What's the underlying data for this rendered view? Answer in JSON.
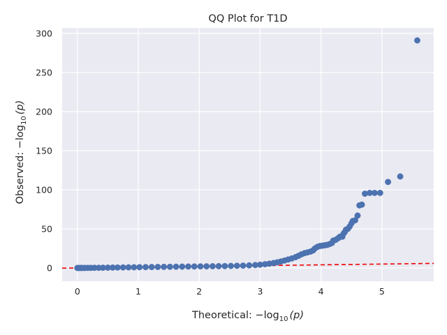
{
  "chart_data": {
    "type": "scatter",
    "title": "QQ Plot for T1D",
    "xlabel_prefix": "Theoretical: ",
    "ylabel_prefix": "Observed: ",
    "label_math": "−log",
    "label_sub": "10",
    "label_arg": "(p)",
    "xlim": [
      -0.25,
      5.85
    ],
    "ylim": [
      -17,
      307
    ],
    "xticks": [
      0,
      1,
      2,
      3,
      4,
      5
    ],
    "yticks": [
      0,
      50,
      100,
      150,
      200,
      250,
      300
    ],
    "xtick_labels": [
      "0",
      "1",
      "2",
      "3",
      "4",
      "5"
    ],
    "ytick_labels": [
      "0",
      "50",
      "100",
      "150",
      "200",
      "250",
      "300"
    ],
    "grid": true,
    "background": "#eaeaf2",
    "point_color": "#4c72b0",
    "reference_line": {
      "color": "#ee0000",
      "style": "dashed",
      "slope": 1,
      "intercept": 0
    },
    "series": [
      {
        "points": [
          [
            0.0,
            0.0
          ],
          [
            0.02,
            0.0
          ],
          [
            0.05,
            0.0
          ],
          [
            0.08,
            0.0
          ],
          [
            0.12,
            0.0
          ],
          [
            0.17,
            0.1
          ],
          [
            0.22,
            0.1
          ],
          [
            0.28,
            0.2
          ],
          [
            0.35,
            0.2
          ],
          [
            0.42,
            0.3
          ],
          [
            0.5,
            0.4
          ],
          [
            0.58,
            0.5
          ],
          [
            0.66,
            0.6
          ],
          [
            0.75,
            0.7
          ],
          [
            0.84,
            0.8
          ],
          [
            0.93,
            0.9
          ],
          [
            1.02,
            1.0
          ],
          [
            1.12,
            1.1
          ],
          [
            1.22,
            1.2
          ],
          [
            1.32,
            1.3
          ],
          [
            1.42,
            1.4
          ],
          [
            1.52,
            1.5
          ],
          [
            1.62,
            1.6
          ],
          [
            1.72,
            1.7
          ],
          [
            1.82,
            1.8
          ],
          [
            1.92,
            1.9
          ],
          [
            2.02,
            2.0
          ],
          [
            2.12,
            2.1
          ],
          [
            2.22,
            2.2
          ],
          [
            2.32,
            2.3
          ],
          [
            2.42,
            2.4
          ],
          [
            2.52,
            2.6
          ],
          [
            2.62,
            2.8
          ],
          [
            2.72,
            3.0
          ],
          [
            2.82,
            3.3
          ],
          [
            2.92,
            3.7
          ],
          [
            3.0,
            4.2
          ],
          [
            3.08,
            4.8
          ],
          [
            3.15,
            5.5
          ],
          [
            3.22,
            6.3
          ],
          [
            3.28,
            7.2
          ],
          [
            3.34,
            8.3
          ],
          [
            3.4,
            9.5
          ],
          [
            3.46,
            10.8
          ],
          [
            3.52,
            12.2
          ],
          [
            3.58,
            13.8
          ],
          [
            3.63,
            15.5
          ],
          [
            3.68,
            17.5
          ],
          [
            3.73,
            19.0
          ],
          [
            3.78,
            20.0
          ],
          [
            3.83,
            21.0
          ],
          [
            3.87,
            22.5
          ],
          [
            3.9,
            25.0
          ],
          [
            3.94,
            27.0
          ],
          [
            3.98,
            28.0
          ],
          [
            4.02,
            28.5
          ],
          [
            4.06,
            29.0
          ],
          [
            4.1,
            29.5
          ],
          [
            4.14,
            30.5
          ],
          [
            4.18,
            32.0
          ],
          [
            4.2,
            35.0
          ],
          [
            4.24,
            36.0
          ],
          [
            4.28,
            38.0
          ],
          [
            4.31,
            40.0
          ],
          [
            4.35,
            40.0
          ],
          [
            4.37,
            44.0
          ],
          [
            4.39,
            46.0
          ],
          [
            4.41,
            49.0
          ],
          [
            4.44,
            50.0
          ],
          [
            4.47,
            53.0
          ],
          [
            4.5,
            57.0
          ],
          [
            4.52,
            60.0
          ],
          [
            4.56,
            61.0
          ],
          [
            4.6,
            67.0
          ],
          [
            4.63,
            80.0
          ],
          [
            4.67,
            81.0
          ],
          [
            4.72,
            95.0
          ],
          [
            4.8,
            96.0
          ],
          [
            4.88,
            96.0
          ],
          [
            4.97,
            96.0
          ],
          [
            5.1,
            110.0
          ],
          [
            5.3,
            117.0
          ],
          [
            5.58,
            291.0
          ]
        ]
      }
    ]
  }
}
